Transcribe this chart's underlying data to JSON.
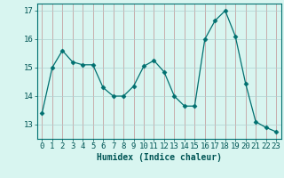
{
  "x": [
    0,
    1,
    2,
    3,
    4,
    5,
    6,
    7,
    8,
    9,
    10,
    11,
    12,
    13,
    14,
    15,
    16,
    17,
    18,
    19,
    20,
    21,
    22,
    23
  ],
  "y": [
    13.4,
    15.0,
    15.6,
    15.2,
    15.1,
    15.1,
    14.3,
    14.0,
    14.0,
    14.35,
    15.05,
    15.25,
    14.85,
    14.0,
    13.65,
    13.65,
    16.0,
    16.65,
    17.0,
    16.1,
    14.45,
    13.1,
    12.9,
    12.75
  ],
  "line_color": "#007070",
  "marker": "D",
  "marker_size": 2.5,
  "bg_color": "#d8f5f0",
  "xlabel": "Humidex (Indice chaleur)",
  "ylim": [
    12.5,
    17.25
  ],
  "xlim": [
    -0.5,
    23.5
  ],
  "yticks": [
    13,
    14,
    15,
    16,
    17
  ],
  "xticks": [
    0,
    1,
    2,
    3,
    4,
    5,
    6,
    7,
    8,
    9,
    10,
    11,
    12,
    13,
    14,
    15,
    16,
    17,
    18,
    19,
    20,
    21,
    22,
    23
  ],
  "xlabel_fontsize": 7,
  "tick_fontsize": 6.5,
  "tick_color": "#005555",
  "spine_color": "#007070",
  "vgrid_color": "#c09090",
  "hgrid_color": "#b0d0d0"
}
